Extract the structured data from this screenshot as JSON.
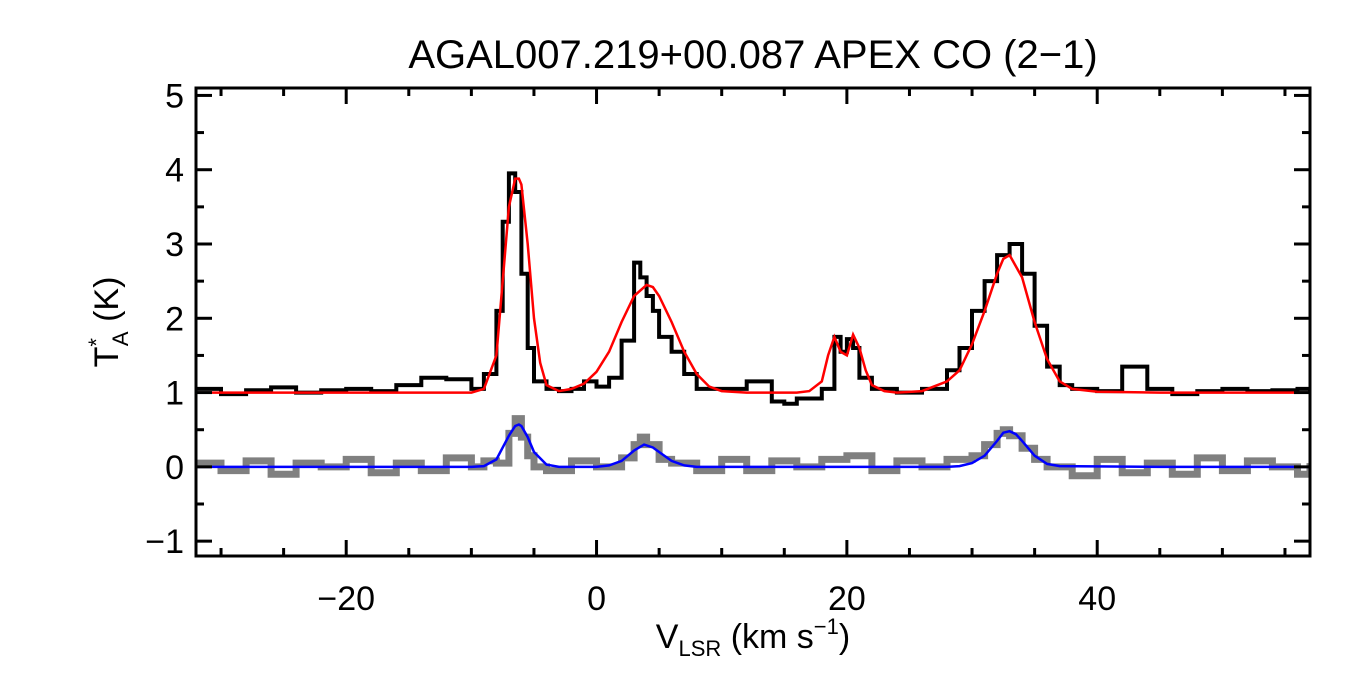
{
  "chart_data": {
    "type": "line",
    "title": "AGAL007.219+00.087  APEX CO (2−1)",
    "xlabel": {
      "main": "V",
      "sub": "LSR",
      "units_pre": " (km s",
      "units_sup": "−1",
      "units_post": ")"
    },
    "ylabel": {
      "main": "T",
      "sup": "*",
      "sub": "A",
      "units": " (K)"
    },
    "xlim": [
      -32,
      57
    ],
    "ylim": [
      -1.2,
      5.1
    ],
    "xticks": [
      -20,
      0,
      20,
      40
    ],
    "xtick_labels": [
      "−20",
      "0",
      "20",
      "40"
    ],
    "yticks": [
      -1,
      0,
      1,
      2,
      3,
      4,
      5
    ],
    "ytick_labels": [
      "−1",
      "0",
      "1",
      "2",
      "3",
      "4",
      "5"
    ],
    "grid": false,
    "series": [
      {
        "style": "histogram",
        "color": "#000000",
        "x": [
          -32,
          -30,
          -28,
          -26,
          -24,
          -22,
          -20,
          -18,
          -16,
          -14,
          -12,
          -10,
          -9,
          -8,
          -7.5,
          -7,
          -6.5,
          -6,
          -5.5,
          -5,
          -4,
          -3,
          -2,
          -1,
          0,
          1,
          2,
          3,
          3.5,
          4,
          4.5,
          5,
          6,
          7,
          8,
          9,
          10,
          12,
          14,
          15,
          16,
          18,
          19,
          19.5,
          20,
          20.5,
          21,
          22,
          24,
          26,
          28,
          29,
          30,
          31,
          32,
          33,
          34,
          35,
          36,
          37,
          38,
          40,
          42,
          44,
          46,
          48,
          50,
          52,
          54,
          56,
          57
        ],
        "y": [
          1.05,
          0.98,
          1.03,
          1.07,
          1.0,
          1.03,
          1.05,
          1.02,
          1.1,
          1.2,
          1.18,
          1.05,
          1.25,
          2.1,
          3.3,
          3.95,
          3.7,
          2.6,
          1.6,
          1.15,
          1.05,
          1.02,
          1.05,
          1.15,
          1.08,
          1.2,
          1.7,
          2.75,
          2.55,
          2.3,
          2.1,
          1.75,
          1.55,
          1.25,
          1.05,
          1.05,
          1.05,
          1.15,
          0.88,
          0.85,
          0.92,
          1.05,
          1.75,
          1.55,
          1.72,
          1.6,
          1.2,
          1.05,
          1.0,
          1.05,
          1.3,
          1.6,
          2.1,
          2.5,
          2.85,
          3.0,
          2.6,
          1.9,
          1.35,
          1.1,
          1.05,
          1.02,
          1.35,
          1.05,
          0.98,
          1.02,
          1.05,
          1.02,
          1.03,
          1.05,
          1.0
        ]
      },
      {
        "style": "line",
        "color": "#ff0000",
        "x": [
          -32,
          -10,
          -9,
          -8,
          -7.5,
          -7,
          -6.5,
          -6.2,
          -6,
          -5.5,
          -5,
          -4.5,
          -4,
          -3,
          -2,
          -1,
          0,
          1,
          2,
          3,
          4,
          4.5,
          5,
          6,
          7,
          8,
          9,
          10,
          12,
          14,
          16,
          17,
          18,
          18.5,
          19,
          19.5,
          20,
          20.5,
          21,
          21.5,
          22,
          23,
          24,
          26,
          28,
          29,
          30,
          31,
          32,
          32.5,
          33,
          34,
          35,
          36,
          37,
          38,
          40,
          45,
          50,
          57
        ],
        "y": [
          1.0,
          1.0,
          1.05,
          1.5,
          2.5,
          3.5,
          3.88,
          3.88,
          3.8,
          3.0,
          2.0,
          1.4,
          1.1,
          1.02,
          1.05,
          1.12,
          1.28,
          1.55,
          1.95,
          2.3,
          2.45,
          2.42,
          2.3,
          1.95,
          1.55,
          1.25,
          1.08,
          1.02,
          1.0,
          1.0,
          1.0,
          1.02,
          1.15,
          1.5,
          1.75,
          1.55,
          1.5,
          1.78,
          1.6,
          1.3,
          1.1,
          1.02,
          1.0,
          1.02,
          1.15,
          1.3,
          1.65,
          2.1,
          2.6,
          2.8,
          2.85,
          2.55,
          1.95,
          1.45,
          1.15,
          1.05,
          1.01,
          1.0,
          1.0,
          1.0
        ]
      },
      {
        "style": "histogram",
        "color": "#808080",
        "x": [
          -32,
          -30,
          -28,
          -26,
          -24,
          -22,
          -20,
          -18,
          -16,
          -14,
          -12,
          -10,
          -9,
          -8,
          -7,
          -6.5,
          -6,
          -5.5,
          -5,
          -4,
          -2,
          0,
          2,
          3,
          3.5,
          4,
          5,
          6,
          8,
          10,
          12,
          14,
          16,
          18,
          20,
          22,
          24,
          26,
          28,
          30,
          31,
          32,
          32.5,
          33,
          34,
          35,
          36,
          38,
          40,
          42,
          44,
          46,
          48,
          50,
          52,
          54,
          56,
          57
        ],
        "y": [
          0.05,
          -0.05,
          0.08,
          -0.1,
          0.05,
          0.0,
          0.1,
          -0.08,
          0.05,
          -0.05,
          0.12,
          0.0,
          0.08,
          0.05,
          0.45,
          0.65,
          0.4,
          0.15,
          0.0,
          -0.05,
          0.08,
          0.0,
          0.12,
          0.3,
          0.4,
          0.3,
          0.1,
          0.05,
          -0.05,
          0.1,
          -0.05,
          0.08,
          0.0,
          0.1,
          0.15,
          -0.05,
          0.08,
          0.0,
          0.1,
          0.15,
          0.3,
          0.45,
          0.5,
          0.42,
          0.25,
          0.1,
          0.0,
          -0.12,
          0.1,
          -0.08,
          0.05,
          -0.1,
          0.12,
          -0.05,
          0.08,
          0.0,
          -0.1,
          0.05
        ]
      },
      {
        "style": "line",
        "color": "#0000ff",
        "x": [
          -32,
          -10,
          -9,
          -8,
          -7,
          -6.5,
          -6.2,
          -6,
          -5.5,
          -5,
          -4,
          -3,
          -2,
          0,
          1,
          2,
          3,
          3.8,
          4.5,
          5,
          6,
          7,
          8,
          10,
          20,
          28,
          29,
          30,
          31,
          32,
          32.5,
          33,
          33.5,
          34,
          35,
          36,
          37,
          45,
          57
        ],
        "y": [
          0.0,
          0.0,
          0.01,
          0.1,
          0.42,
          0.55,
          0.57,
          0.55,
          0.4,
          0.2,
          0.03,
          0.0,
          0.0,
          0.0,
          0.02,
          0.08,
          0.22,
          0.3,
          0.26,
          0.2,
          0.08,
          0.02,
          0.0,
          0.0,
          0.0,
          0.0,
          0.01,
          0.05,
          0.15,
          0.35,
          0.46,
          0.48,
          0.44,
          0.35,
          0.15,
          0.04,
          0.01,
          0.0,
          0.0
        ]
      }
    ]
  }
}
